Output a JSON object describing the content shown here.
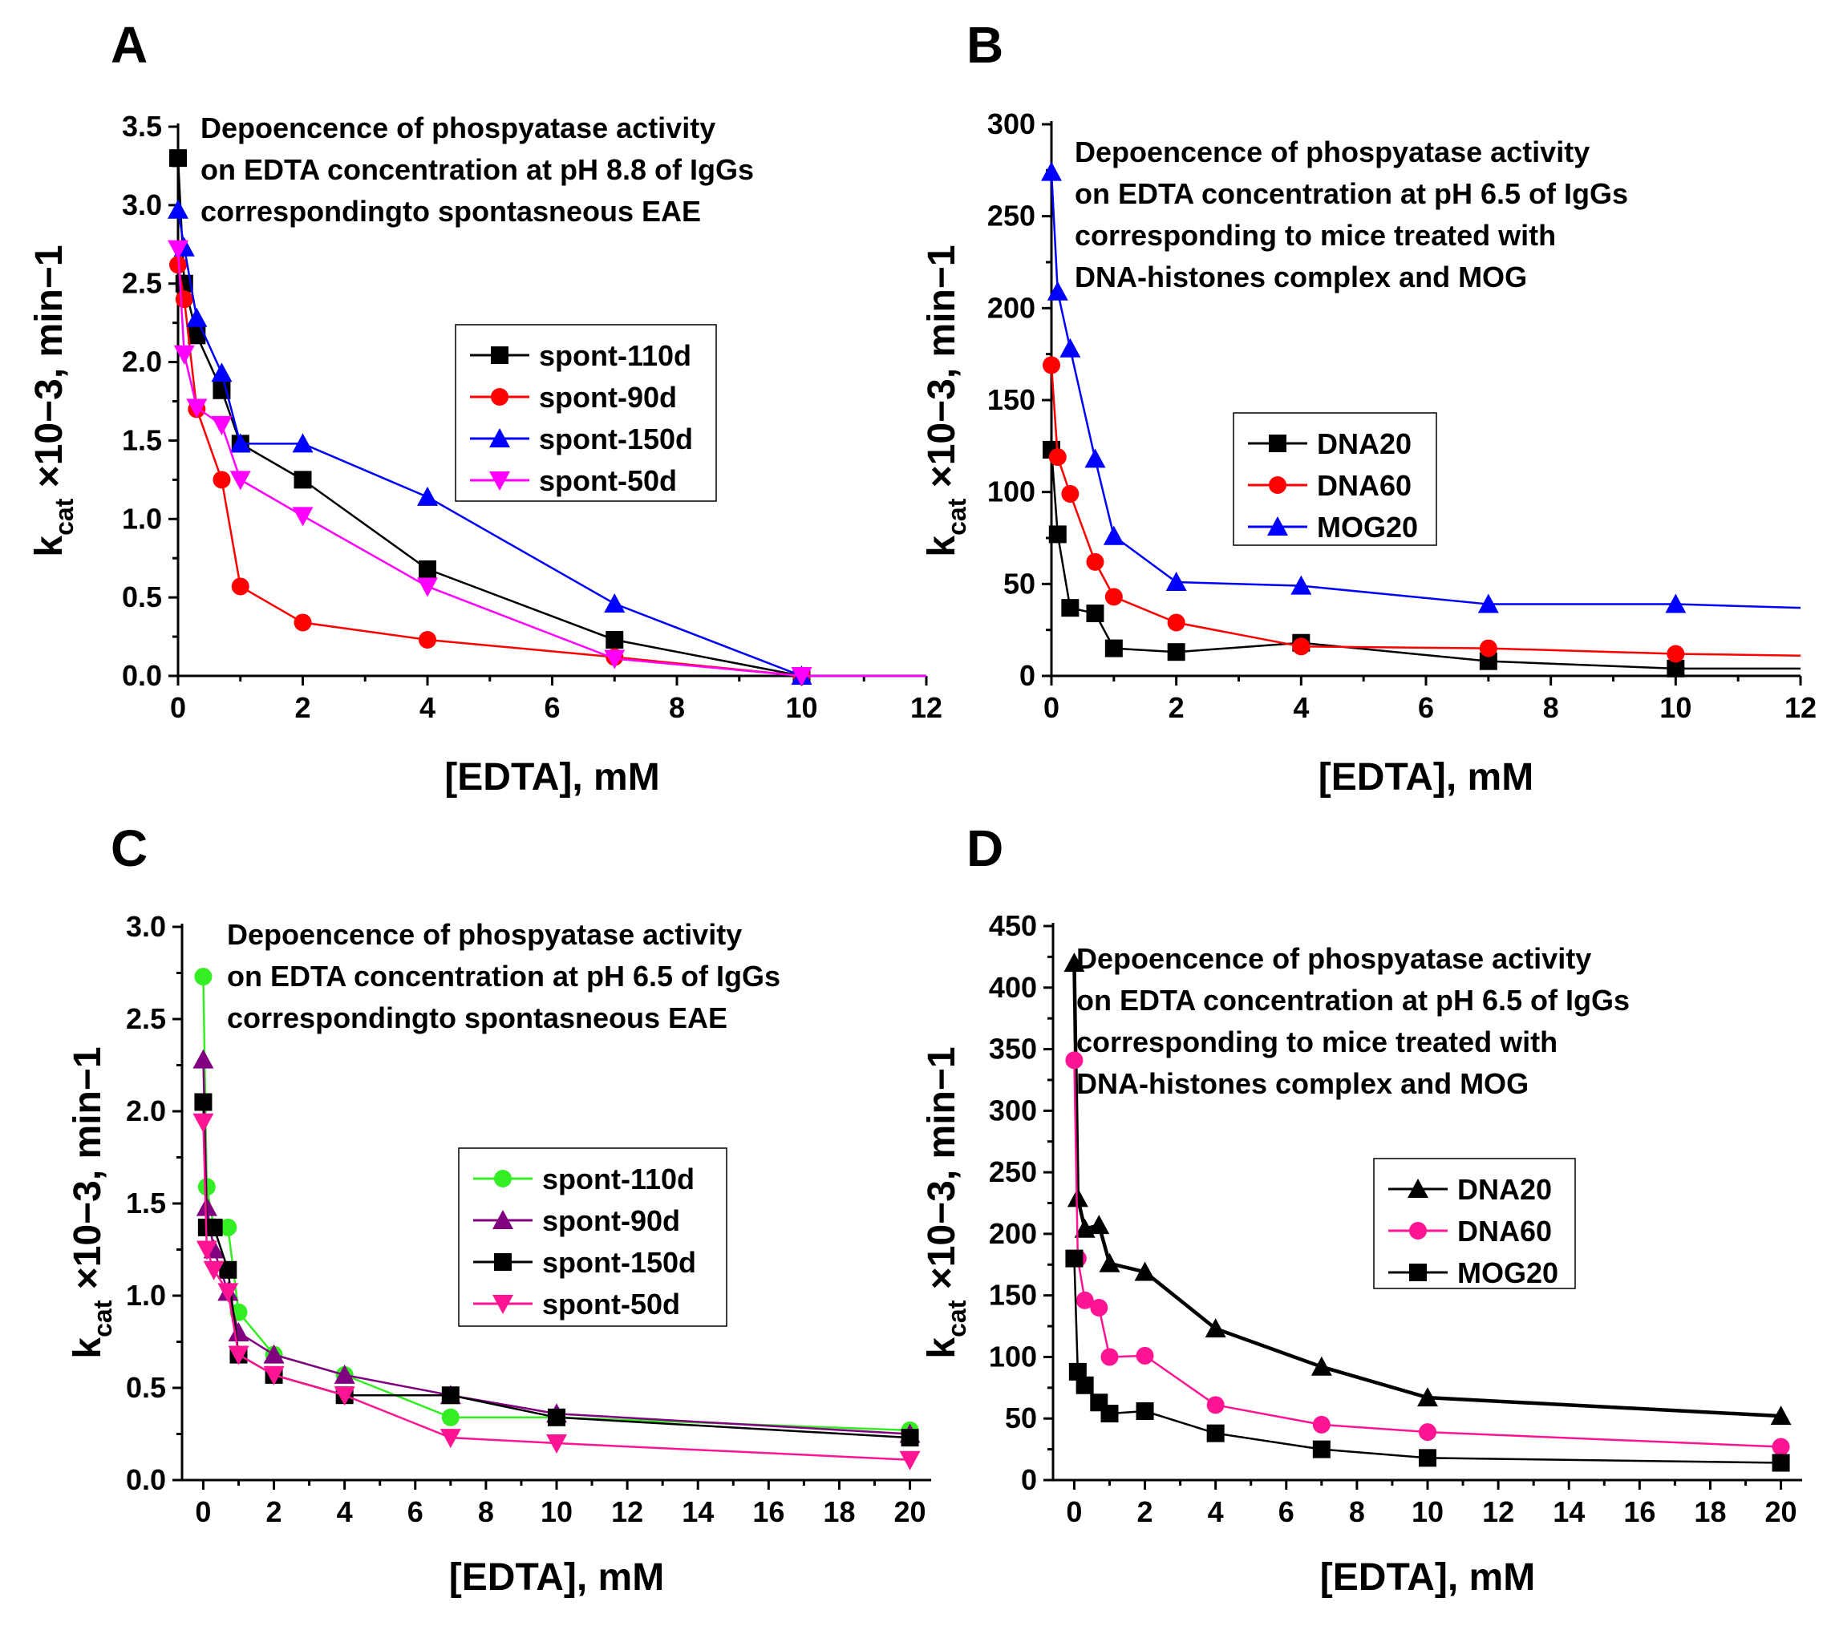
{
  "chart_data": [
    {
      "panel": "A",
      "type": "line",
      "title": "Depoencence of phospyatase activity on EDTA concentration at pH 8.8 of IgGs correspondingto spontasneous EAE",
      "title_lines": [
        "Depoencence of phospyatase activity",
        "on EDTA concentration at pH 8.8 of IgGs",
        "correspondingto spontasneous EAE"
      ],
      "xlabel": "[EDTA], mM",
      "ylabel": "k_cat ×10−3, min−1",
      "ylabel_parts": {
        "k": "k",
        "sub": "cat",
        "rest": " ×10−3, min−1"
      },
      "xlim": [
        0,
        12
      ],
      "ylim": [
        0,
        3.5
      ],
      "xticks": [
        "0",
        "2",
        "4",
        "6",
        "8",
        "10",
        "12"
      ],
      "yticks": [
        "0.0",
        "0.5",
        "1.0",
        "1.5",
        "2.0",
        "2.5",
        "3.0",
        "3.5"
      ],
      "legend_position": "center-right",
      "series": [
        {
          "name": "spont-110d",
          "color": "#000000",
          "marker": "square",
          "x": [
            0,
            0.1,
            0.3,
            0.7,
            1,
            2,
            4,
            7,
            10,
            12
          ],
          "y": [
            3.3,
            2.5,
            2.17,
            1.82,
            1.48,
            1.25,
            0.68,
            0.23,
            0.0,
            0.0
          ]
        },
        {
          "name": "spont-90d",
          "color": "#ff0000",
          "marker": "circle",
          "x": [
            0,
            0.1,
            0.3,
            0.7,
            1,
            2,
            4,
            7,
            10,
            12
          ],
          "y": [
            2.62,
            2.4,
            1.7,
            1.25,
            0.57,
            0.34,
            0.23,
            0.12,
            0.0,
            0.0
          ]
        },
        {
          "name": "spont-150d",
          "color": "#0000ff",
          "marker": "triangle-up",
          "x": [
            0,
            0.1,
            0.3,
            0.7,
            1,
            2,
            4,
            7,
            10,
            12
          ],
          "y": [
            2.97,
            2.73,
            2.28,
            1.93,
            1.48,
            1.48,
            1.14,
            0.46,
            0.0,
            0.0
          ]
        },
        {
          "name": "spont-50d",
          "color": "#ff00ff",
          "marker": "triangle-down",
          "x": [
            0,
            0.1,
            0.3,
            0.7,
            1,
            2,
            4,
            7,
            10,
            12
          ],
          "y": [
            2.72,
            2.05,
            1.71,
            1.6,
            1.25,
            1.02,
            0.57,
            0.11,
            0.0,
            0.0
          ]
        }
      ]
    },
    {
      "panel": "B",
      "type": "line",
      "title": "Depoencence of phospyatase activity on EDTA concentration at pH 6.5 of IgGs corresponding to mice treated with DNA-histones complex and MOG",
      "title_lines": [
        "Depoencence of phospyatase activity",
        "on EDTA concentration at pH 6.5 of IgGs",
        "corresponding to mice treated with",
        "DNA-histones complex  and MOG"
      ],
      "xlabel": "[EDTA], mM",
      "ylabel": "k_cat ×10−3, min−1",
      "ylabel_parts": {
        "k": "k",
        "sub": "cat",
        "rest": " ×10−3, min−1"
      },
      "xlim": [
        0,
        12
      ],
      "ylim": [
        0,
        300
      ],
      "xticks": [
        "0",
        "2",
        "4",
        "6",
        "8",
        "10",
        "12"
      ],
      "yticks": [
        "0",
        "50",
        "100",
        "150",
        "200",
        "250",
        "300"
      ],
      "legend_position": "center",
      "series": [
        {
          "name": "DNA20",
          "color": "#000000",
          "marker": "square",
          "x": [
            0,
            0.1,
            0.3,
            0.7,
            1,
            2,
            4,
            7,
            10,
            12
          ],
          "y": [
            123,
            77,
            37,
            34,
            15,
            13,
            18,
            8,
            4,
            4
          ]
        },
        {
          "name": "DNA60",
          "color": "#ff0000",
          "marker": "circle",
          "x": [
            0,
            0.1,
            0.3,
            0.7,
            1,
            2,
            4,
            7,
            10,
            12
          ],
          "y": [
            169,
            119,
            99,
            62,
            43,
            29,
            16,
            15,
            12,
            11
          ]
        },
        {
          "name": "MOG20",
          "color": "#0000ff",
          "marker": "triangle-up",
          "x": [
            0,
            0.1,
            0.3,
            0.7,
            1,
            2,
            4,
            7,
            10,
            12
          ],
          "y": [
            274,
            209,
            178,
            118,
            76,
            51,
            49,
            39,
            39,
            37
          ]
        }
      ]
    },
    {
      "panel": "C",
      "type": "line",
      "title": "Depoencence of phospyatase activity on EDTA concentration at pH 6.5 of IgGs correspondingto spontasneous EAE",
      "title_lines": [
        "Depoencence of phospyatase activity",
        "on EDTA concentration at pH 6.5 of IgGs",
        "correspondingto spontasneous EAE"
      ],
      "xlabel": "[EDTA], mM",
      "ylabel": "k_cat ×10−3, min−1",
      "ylabel_parts": {
        "k": "k",
        "sub": "cat",
        "rest": " ×10−3, min−1"
      },
      "xlim": [
        -0.6,
        20.6
      ],
      "ylim": [
        0,
        3.0
      ],
      "xticks": [
        "0",
        "2",
        "4",
        "6",
        "8",
        "10",
        "12",
        "14",
        "16",
        "18",
        "20"
      ],
      "yticks": [
        "0.0",
        "0.5",
        "1.0",
        "1.5",
        "2.0",
        "2.5",
        "3.0"
      ],
      "legend_position": "center-right",
      "series": [
        {
          "name": "spont-110d",
          "color": "#33ee22",
          "marker": "circle",
          "x": [
            0,
            0.1,
            0.3,
            0.7,
            1,
            2,
            4,
            7,
            10,
            20
          ],
          "y": [
            2.73,
            1.59,
            1.37,
            1.37,
            0.91,
            0.68,
            0.57,
            0.34,
            0.34,
            0.27
          ]
        },
        {
          "name": "spont-90d",
          "color": "#800080",
          "marker": "triangle-up",
          "x": [
            0,
            0.1,
            0.3,
            0.7,
            1,
            2,
            4,
            7,
            10,
            20
          ],
          "y": [
            2.28,
            1.48,
            1.25,
            1.02,
            0.8,
            0.68,
            0.57,
            0.46,
            0.36,
            0.25
          ]
        },
        {
          "name": "spont-150d",
          "color": "#000000",
          "marker": "square",
          "x": [
            0,
            0.1,
            0.3,
            0.7,
            1,
            2,
            4,
            7,
            10,
            20
          ],
          "y": [
            2.05,
            1.37,
            1.37,
            1.14,
            0.68,
            0.57,
            0.46,
            0.46,
            0.34,
            0.23
          ]
        },
        {
          "name": "spont-50d",
          "color": "#ff1493",
          "marker": "triangle-down",
          "x": [
            0,
            0.1,
            0.3,
            0.7,
            1,
            2,
            4,
            7,
            10,
            20
          ],
          "y": [
            1.94,
            1.25,
            1.14,
            1.02,
            0.68,
            0.57,
            0.46,
            0.23,
            0.2,
            0.11
          ]
        }
      ]
    },
    {
      "panel": "D",
      "type": "line",
      "title": "Depoencence of phospyatase activity on EDTA concentration at pH 6.5 of IgGs corresponding to mice treated with DNA-histones complex and MOG",
      "title_lines": [
        "Depoencence of phospyatase activity",
        "on EDTA concentration at pH 6.5 of IgGs",
        "corresponding to mice treated with",
        "DNA-histones complex  and MOG"
      ],
      "xlabel": "[EDTA], mM",
      "ylabel": "k_cat ×10−3, min−1",
      "ylabel_parts": {
        "k": "k",
        "sub": "cat",
        "rest": " ×10−3, min−1"
      },
      "xlim": [
        -0.6,
        20.6
      ],
      "ylim": [
        0,
        450
      ],
      "xticks": [
        "0",
        "2",
        "4",
        "6",
        "8",
        "10",
        "12",
        "14",
        "16",
        "18",
        "20"
      ],
      "yticks": [
        "0",
        "50",
        "100",
        "150",
        "200",
        "250",
        "300",
        "350",
        "400",
        "450"
      ],
      "legend_position": "center-right",
      "series": [
        {
          "name": "DNA20",
          "color": "#000000",
          "marker": "triangle-up",
          "x": [
            0,
            0.1,
            0.3,
            0.7,
            1,
            2,
            4,
            7,
            10,
            20
          ],
          "y": [
            420,
            229,
            204,
            207,
            176,
            169,
            123,
            92,
            67,
            52
          ]
        },
        {
          "name": "DNA60",
          "color": "#ff1493",
          "marker": "circle",
          "x": [
            0,
            0.1,
            0.3,
            0.7,
            1,
            2,
            4,
            7,
            10,
            20
          ],
          "y": [
            341,
            180,
            146,
            140,
            100,
            101,
            61,
            45,
            39,
            27
          ]
        },
        {
          "name": "MOG20",
          "color": "#000000",
          "marker": "square",
          "x": [
            0,
            0.1,
            0.3,
            0.7,
            1,
            2,
            4,
            7,
            10,
            20
          ],
          "y": [
            180,
            88,
            77,
            63,
            54,
            56,
            38,
            25,
            18,
            14
          ]
        }
      ]
    }
  ]
}
